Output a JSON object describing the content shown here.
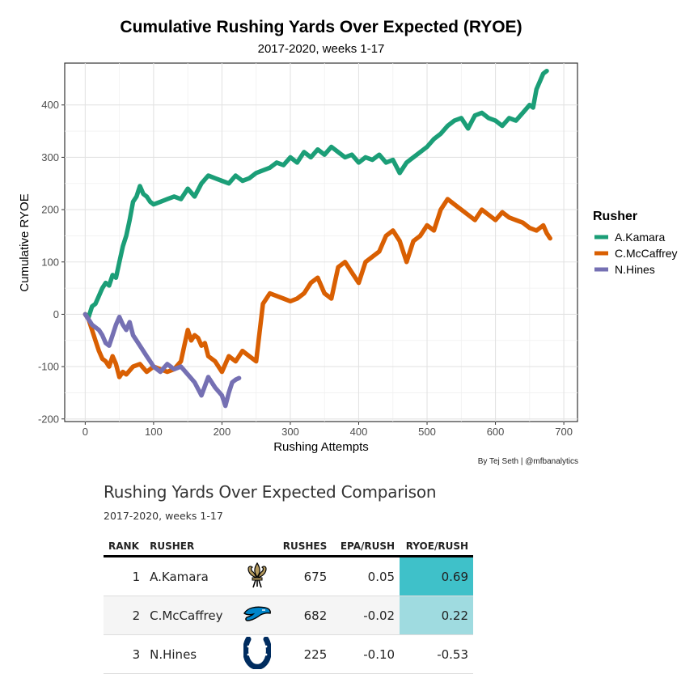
{
  "chart_data": {
    "type": "line",
    "title": "Cumulative Rushing Yards Over Expected (RYOE)",
    "subtitle": "2017-2020, weeks 1-17",
    "xlabel": "Rushing Attempts",
    "ylabel": "Cumulative RYOE",
    "xlim": [
      -30,
      720
    ],
    "ylim": [
      -205,
      480
    ],
    "xticks": [
      0,
      100,
      200,
      300,
      400,
      500,
      600,
      700
    ],
    "yticks": [
      -200,
      -100,
      0,
      100,
      200,
      300,
      400
    ],
    "grid": true,
    "legend_title": "Rusher",
    "legend_position": "right",
    "series": [
      {
        "name": "A.Kamara",
        "color": "#1b9e77",
        "x": [
          0,
          5,
          10,
          15,
          20,
          25,
          30,
          35,
          40,
          45,
          50,
          55,
          60,
          65,
          70,
          75,
          80,
          85,
          90,
          95,
          100,
          110,
          120,
          130,
          140,
          150,
          160,
          170,
          180,
          190,
          200,
          210,
          220,
          230,
          240,
          250,
          260,
          270,
          280,
          290,
          300,
          310,
          320,
          330,
          340,
          350,
          360,
          370,
          380,
          390,
          400,
          410,
          420,
          430,
          440,
          450,
          460,
          470,
          480,
          490,
          500,
          510,
          520,
          530,
          540,
          550,
          560,
          570,
          580,
          590,
          600,
          610,
          620,
          630,
          640,
          650,
          655,
          660,
          665,
          670,
          675
        ],
        "y": [
          0,
          -5,
          15,
          20,
          35,
          50,
          60,
          55,
          75,
          70,
          100,
          130,
          150,
          180,
          215,
          225,
          245,
          230,
          225,
          215,
          210,
          215,
          220,
          225,
          220,
          240,
          225,
          250,
          265,
          260,
          255,
          250,
          265,
          255,
          260,
          270,
          275,
          280,
          290,
          285,
          300,
          290,
          310,
          300,
          315,
          305,
          320,
          310,
          300,
          305,
          290,
          300,
          295,
          305,
          290,
          295,
          270,
          290,
          300,
          310,
          320,
          335,
          345,
          360,
          370,
          375,
          355,
          380,
          385,
          375,
          370,
          360,
          375,
          370,
          385,
          400,
          395,
          430,
          445,
          460,
          465
        ]
      },
      {
        "name": "C.McCaffrey",
        "color": "#d95f02",
        "x": [
          0,
          5,
          10,
          15,
          20,
          25,
          30,
          35,
          40,
          45,
          50,
          55,
          60,
          70,
          80,
          90,
          100,
          110,
          120,
          130,
          140,
          145,
          150,
          155,
          160,
          165,
          170,
          175,
          180,
          190,
          200,
          210,
          220,
          230,
          240,
          250,
          260,
          265,
          270,
          280,
          290,
          300,
          310,
          320,
          330,
          340,
          350,
          360,
          370,
          380,
          390,
          400,
          410,
          420,
          430,
          440,
          450,
          460,
          470,
          480,
          490,
          500,
          510,
          520,
          530,
          540,
          550,
          560,
          570,
          580,
          590,
          600,
          610,
          620,
          630,
          640,
          650,
          660,
          670,
          675,
          680
        ],
        "y": [
          0,
          -10,
          -30,
          -50,
          -70,
          -85,
          -90,
          -100,
          -80,
          -95,
          -120,
          -110,
          -115,
          -100,
          -95,
          -110,
          -100,
          -105,
          -110,
          -105,
          -90,
          -60,
          -30,
          -50,
          -40,
          -45,
          -60,
          -55,
          -80,
          -90,
          -110,
          -80,
          -90,
          -70,
          -80,
          -90,
          20,
          30,
          40,
          35,
          30,
          25,
          30,
          40,
          60,
          70,
          40,
          30,
          90,
          100,
          80,
          60,
          100,
          110,
          120,
          150,
          160,
          140,
          100,
          140,
          150,
          170,
          160,
          200,
          220,
          210,
          200,
          190,
          180,
          200,
          190,
          180,
          195,
          185,
          180,
          175,
          165,
          160,
          170,
          155,
          145
        ]
      },
      {
        "name": "N.Hines",
        "color": "#7570b3",
        "x": [
          0,
          5,
          10,
          15,
          20,
          25,
          30,
          35,
          40,
          45,
          50,
          55,
          60,
          65,
          70,
          75,
          80,
          85,
          90,
          95,
          100,
          110,
          120,
          130,
          140,
          150,
          160,
          170,
          180,
          190,
          200,
          205,
          210,
          215,
          220,
          225
        ],
        "y": [
          0,
          -10,
          -20,
          -25,
          -30,
          -40,
          -55,
          -60,
          -40,
          -20,
          -5,
          -20,
          -30,
          -15,
          -40,
          -50,
          -60,
          -70,
          -80,
          -90,
          -100,
          -110,
          -95,
          -105,
          -100,
          -115,
          -130,
          -155,
          -120,
          -140,
          -155,
          -175,
          -150,
          -130,
          -125,
          -122
        ]
      }
    ]
  },
  "credit": "By Tej Seth | @mfbanalytics",
  "table": {
    "title": "Rushing Yards Over Expected Comparison",
    "subtitle": "2017-2020, weeks 1-17",
    "headers": {
      "rank": "RANK",
      "rusher": "RUSHER",
      "rushes": "RUSHES",
      "epa": "EPA/RUSH",
      "ryoe": "RYOE/RUSH"
    },
    "rows": [
      {
        "rank": "1",
        "rusher": "A.Kamara",
        "team_icon": "saints-fleur-de-lis-icon",
        "rushes": "675",
        "epa": "0.05",
        "ryoe": "0.69",
        "ryoe_bg": "#3fc1c9"
      },
      {
        "rank": "2",
        "rusher": "C.McCaffrey",
        "team_icon": "panthers-logo-icon",
        "rushes": "682",
        "epa": "-0.02",
        "ryoe": "0.22",
        "ryoe_bg": "#9fdbe0"
      },
      {
        "rank": "3",
        "rusher": "N.Hines",
        "team_icon": "colts-horseshoe-icon",
        "rushes": "225",
        "epa": "-0.10",
        "ryoe": "-0.53",
        "ryoe_bg": "#ffffff"
      }
    ]
  }
}
